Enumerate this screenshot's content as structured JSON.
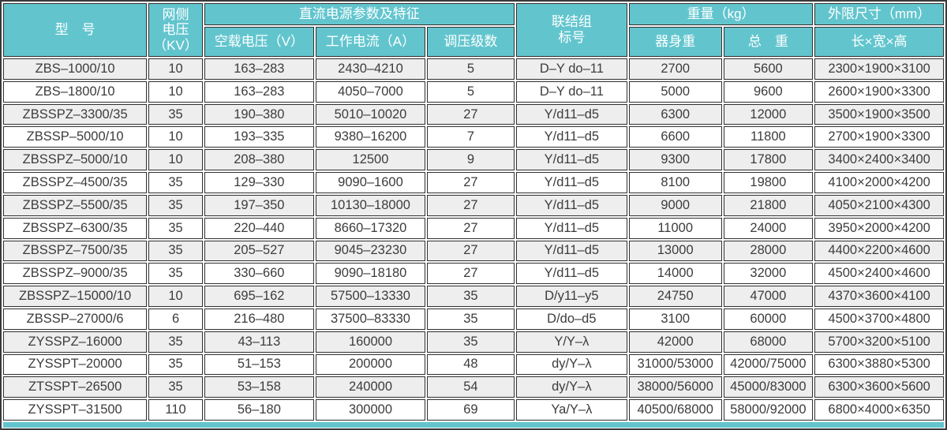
{
  "colors": {
    "accent_teal": "#62c5ce",
    "row_alt_gray": "#eeeeee",
    "border_dark": "#2f2f2f",
    "header_text": "#ffffff",
    "cell_text": "#3c3c3c"
  },
  "header": {
    "model": "型　号",
    "grid_voltage_lines": [
      "网侧",
      "电压",
      "（KV）"
    ],
    "dc_section": "直流电源参数及特征",
    "no_load_voltage": "空载电压（V）",
    "working_current": "工作电流（A）",
    "regulation_steps": "调压级数",
    "connection_lines": [
      "联结组",
      "标号"
    ],
    "weight_section": "重量（kg）",
    "body_weight": "器身重",
    "total_weight": "总　重",
    "dimensions_section": "外限尺寸（mm）",
    "dimensions_sub": "长×宽×高"
  },
  "rows": [
    [
      "ZBS–1000/10",
      "10",
      "163–283",
      "2430–4210",
      "5",
      "D–Y do–11",
      "2700",
      "5600",
      "2300×1900×3100"
    ],
    [
      "ZBS–1800/10",
      "10",
      "163–283",
      "4050–7000",
      "5",
      "D–Y do–11",
      "5000",
      "9600",
      "2600×1900×3300"
    ],
    [
      "ZBSSPZ–3300/35",
      "35",
      "190–380",
      "5010–10020",
      "27",
      "Y/d11–d5",
      "6300",
      "12000",
      "3500×1900×3500"
    ],
    [
      "ZBSSP–5000/10",
      "10",
      "193–335",
      "9380–16200",
      "7",
      "Y/d11–d5",
      "6600",
      "11800",
      "2700×1900×3300"
    ],
    [
      "ZBSSPZ–5000/10",
      "10",
      "208–380",
      "12500",
      "9",
      "Y/d11–d5",
      "9300",
      "17800",
      "3400×2400×3400"
    ],
    [
      "ZBSSPZ–4500/35",
      "35",
      "129–330",
      "9090–1600",
      "27",
      "Y/d11–d5",
      "8100",
      "19800",
      "4100×2000×4200"
    ],
    [
      "ZBSSPZ–5500/35",
      "35",
      "197–350",
      "10130–18000",
      "27",
      "Y/d11–d5",
      "9000",
      "21800",
      "4050×2100×4300"
    ],
    [
      "ZBSSPZ–6300/35",
      "35",
      "220–440",
      "8660–17320",
      "27",
      "Y/d11–d5",
      "11000",
      "24000",
      "3950×2000×4200"
    ],
    [
      "ZBSSPZ–7500/35",
      "35",
      "205–527",
      "9045–23230",
      "27",
      "Y/d11–d5",
      "13000",
      "28000",
      "4400×2200×4600"
    ],
    [
      "ZBSSPZ–9000/35",
      "35",
      "330–660",
      "9090–18180",
      "27",
      "Y/d11–d5",
      "14000",
      "32000",
      "4500×2400×4600"
    ],
    [
      "ZBSSPZ–15000/10",
      "10",
      "695–162",
      "57500–13330",
      "35",
      "D/y11–y5",
      "24750",
      "47000",
      "4370×3600×4100"
    ],
    [
      "ZBSSP–27000/6",
      "6",
      "216–480",
      "37500–83330",
      "35",
      "D/do–d5",
      "3100",
      "60000",
      "4500×3700×4800"
    ],
    [
      "ZYSSPZ–16000",
      "35",
      "43–113",
      "160000",
      "35",
      "Y/Y–λ",
      "42000",
      "68000",
      "5700×3200×5100"
    ],
    [
      "ZYSSPT–20000",
      "35",
      "51–153",
      "200000",
      "48",
      "dy/Y–λ",
      "31000/53000",
      "42000/75000",
      "6300×3880×5300"
    ],
    [
      "ZTSSPT–26500",
      "35",
      "53–158",
      "240000",
      "54",
      "dy/Y–λ",
      "38000/56000",
      "45000/83000",
      "6300×3600×5600"
    ],
    [
      "ZYSSPT–31500",
      "110",
      "56–180",
      "300000",
      "69",
      "Ya/Y–λ",
      "40500/68000",
      "58000/92000",
      "6800×4000×6350"
    ]
  ]
}
